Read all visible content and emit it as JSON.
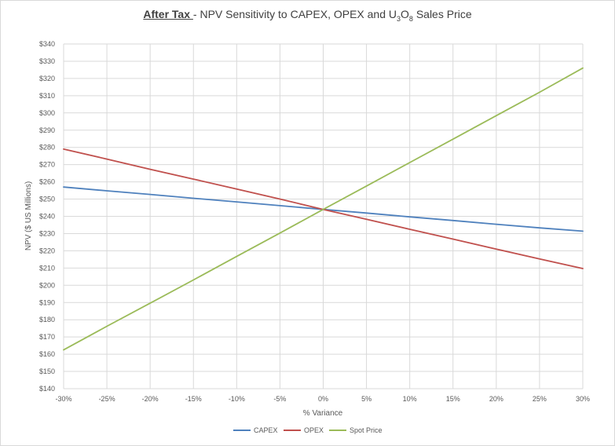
{
  "chart_data": {
    "type": "line",
    "title": {
      "bold": "After Tax ",
      "rest": "- NPV Sensitivity to CAPEX, OPEX and U",
      "sub1": "3",
      "mid": "O",
      "sub2": "8",
      "end": " Sales Price"
    },
    "xlabel": "% Variance",
    "ylabel": "NPV ($ US Millions)",
    "x": [
      -30,
      -25,
      -20,
      -15,
      -10,
      -5,
      0,
      5,
      10,
      15,
      20,
      25,
      30
    ],
    "x_tick_labels": [
      "-30%",
      "-25%",
      "-20%",
      "-15%",
      "-10%",
      "-5%",
      "0%",
      "5%",
      "10%",
      "15%",
      "20%",
      "25%",
      "30%"
    ],
    "ylim": [
      140,
      340
    ],
    "y_ticks": [
      140,
      150,
      160,
      170,
      180,
      190,
      200,
      210,
      220,
      230,
      240,
      250,
      260,
      270,
      280,
      290,
      300,
      310,
      320,
      330,
      340
    ],
    "y_tick_labels": [
      "$140",
      "$150",
      "$160",
      "$170",
      "$180",
      "$190",
      "$200",
      "$210",
      "$220",
      "$230",
      "$240",
      "$250",
      "$260",
      "$270",
      "$280",
      "$290",
      "$300",
      "$310",
      "$320",
      "$330",
      "$340"
    ],
    "grid": true,
    "legend_position": "bottom",
    "series": [
      {
        "name": "CAPEX",
        "color": "#4f81bd",
        "values": [
          257,
          254.8,
          252.7,
          250.5,
          248.4,
          246.2,
          244,
          241.9,
          239.7,
          237.6,
          235.4,
          233.3,
          231.4
        ]
      },
      {
        "name": "OPEX",
        "color": "#c0504d",
        "values": [
          279,
          273.2,
          267.3,
          261.6,
          255.8,
          250,
          244,
          238.3,
          232.5,
          226.8,
          221,
          215.3,
          209.7
        ]
      },
      {
        "name": "Spot Price",
        "color": "#9bbb59",
        "values": [
          162.5,
          176.2,
          189.6,
          203.1,
          216.7,
          230.3,
          244,
          257.6,
          271.2,
          284.8,
          298.4,
          312,
          326
        ]
      }
    ]
  }
}
